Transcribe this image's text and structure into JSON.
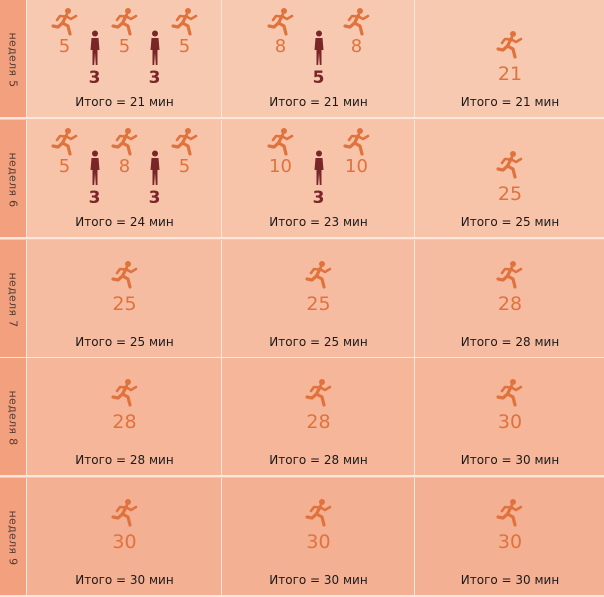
{
  "colors": {
    "runner": "#e0733d",
    "walker": "#7a2528",
    "tab": "#f3a07e",
    "divider": "#fde7dc",
    "text": "#1a1a1a"
  },
  "icons": {
    "run": "runner-icon",
    "walk": "walker-icon"
  },
  "weeks": [
    {
      "label": "неделя 5",
      "days": [
        {
          "intervals": [
            {
              "type": "run",
              "min": "5"
            },
            {
              "type": "walk",
              "min": "3"
            },
            {
              "type": "run",
              "min": "5"
            },
            {
              "type": "walk",
              "min": "3"
            },
            {
              "type": "run",
              "min": "5"
            }
          ],
          "total": "Итого  = 21 мин"
        },
        {
          "intervals": [
            {
              "type": "run",
              "min": "8"
            },
            {
              "type": "walk",
              "min": "5"
            },
            {
              "type": "run",
              "min": "8"
            }
          ],
          "total": "Итого  = 21 мин"
        },
        {
          "intervals": [
            {
              "type": "run",
              "min": "21"
            }
          ],
          "total": "Итого  = 21 мин"
        }
      ]
    },
    {
      "label": "неделя 6",
      "days": [
        {
          "intervals": [
            {
              "type": "run",
              "min": "5"
            },
            {
              "type": "walk",
              "min": "3"
            },
            {
              "type": "run",
              "min": "8"
            },
            {
              "type": "walk",
              "min": "3"
            },
            {
              "type": "run",
              "min": "5"
            }
          ],
          "total": "Итого  = 24 мин"
        },
        {
          "intervals": [
            {
              "type": "run",
              "min": "10"
            },
            {
              "type": "walk",
              "min": "3"
            },
            {
              "type": "run",
              "min": "10"
            }
          ],
          "total": "Итого  = 23 мин"
        },
        {
          "intervals": [
            {
              "type": "run",
              "min": "25"
            }
          ],
          "total": "Итого  = 25 мин"
        }
      ]
    },
    {
      "label": "неделя 7",
      "days": [
        {
          "intervals": [
            {
              "type": "run",
              "min": "25"
            }
          ],
          "total": "Итого  = 25 мин"
        },
        {
          "intervals": [
            {
              "type": "run",
              "min": "25"
            }
          ],
          "total": "Итого  = 25 мин"
        },
        {
          "intervals": [
            {
              "type": "run",
              "min": "28"
            }
          ],
          "total": "Итого  = 28 мин"
        }
      ]
    },
    {
      "label": "неделя 8",
      "days": [
        {
          "intervals": [
            {
              "type": "run",
              "min": "28"
            }
          ],
          "total": "Итого  = 28 мин"
        },
        {
          "intervals": [
            {
              "type": "run",
              "min": "28"
            }
          ],
          "total": "Итого  = 28 мин"
        },
        {
          "intervals": [
            {
              "type": "run",
              "min": "30"
            }
          ],
          "total": "Итого  = 30 мин"
        }
      ]
    },
    {
      "label": "неделя 9",
      "days": [
        {
          "intervals": [
            {
              "type": "run",
              "min": "30"
            }
          ],
          "total": "Итого  = 30 мин"
        },
        {
          "intervals": [
            {
              "type": "run",
              "min": "30"
            }
          ],
          "total": "Итого  = 30 мин"
        },
        {
          "intervals": [
            {
              "type": "run",
              "min": "30"
            }
          ],
          "total": "Итого  = 30 мин"
        }
      ]
    }
  ]
}
